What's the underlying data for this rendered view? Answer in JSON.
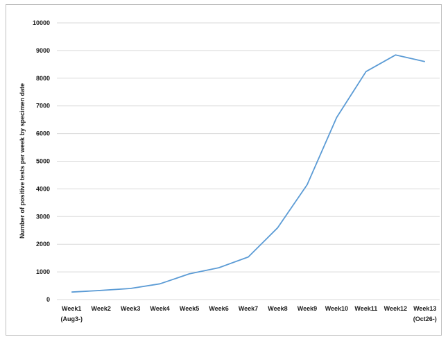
{
  "chart_data": {
    "type": "line",
    "title": "",
    "xlabel": "",
    "ylabel": "Number of positive tests per week by specimen date",
    "ylim": [
      0,
      10000
    ],
    "yticks": [
      0,
      1000,
      2000,
      3000,
      4000,
      5000,
      6000,
      7000,
      8000,
      9000,
      10000
    ],
    "grid": true,
    "legend": "none",
    "categories": [
      [
        "Week1",
        "(Aug3-)"
      ],
      [
        "Week2"
      ],
      [
        "Week3"
      ],
      [
        "Week4"
      ],
      [
        "Week5"
      ],
      [
        "Week6"
      ],
      [
        "Week7"
      ],
      [
        "Week8"
      ],
      [
        "Week9"
      ],
      [
        "Week10"
      ],
      [
        "Week11"
      ],
      [
        "Week12"
      ],
      [
        "Week13",
        "(Oct26-)"
      ]
    ],
    "series": [
      {
        "color": "#5b9bd5",
        "values": [
          270,
          330,
          400,
          570,
          930,
          1150,
          1540,
          2600,
          4150,
          6580,
          8240,
          8840,
          8600
        ]
      }
    ]
  }
}
